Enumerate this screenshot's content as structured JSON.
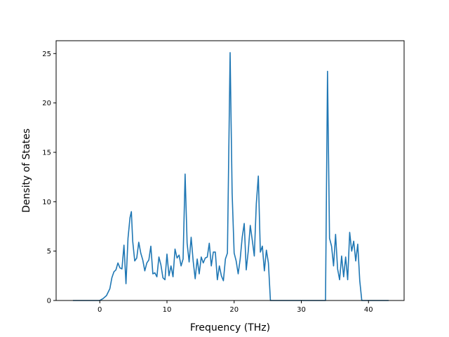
{
  "chart_data": {
    "type": "line",
    "title": "",
    "xlabel": "Frequency (THz)",
    "ylabel": "Density of States",
    "xlim": [
      -6.5,
      45.3
    ],
    "ylim": [
      0,
      26.3
    ],
    "xticks": [
      0,
      10,
      20,
      30,
      40
    ],
    "yticks": [
      0,
      5,
      10,
      15,
      20,
      25
    ],
    "grid": false,
    "legend": "none",
    "series": [
      {
        "color": "#1f77b4",
        "x": [
          -4.0,
          0.0,
          0.5,
          1.0,
          1.5,
          1.8,
          2.1,
          2.4,
          2.7,
          3.0,
          3.3,
          3.6,
          3.9,
          4.2,
          4.5,
          4.7,
          4.9,
          5.2,
          5.5,
          5.8,
          6.1,
          6.4,
          6.7,
          7.0,
          7.3,
          7.6,
          7.9,
          8.2,
          8.5,
          8.8,
          9.1,
          9.4,
          9.7,
          10.0,
          10.3,
          10.6,
          10.9,
          11.2,
          11.5,
          11.8,
          12.1,
          12.4,
          12.7,
          13.0,
          13.3,
          13.6,
          13.9,
          14.2,
          14.5,
          14.8,
          15.1,
          15.4,
          15.7,
          16.0,
          16.3,
          16.6,
          16.9,
          17.2,
          17.5,
          17.8,
          18.1,
          18.4,
          18.7,
          19.0,
          19.4,
          19.7,
          20.0,
          20.3,
          20.6,
          20.9,
          21.2,
          21.5,
          21.8,
          22.1,
          22.4,
          22.7,
          23.0,
          23.3,
          23.6,
          23.9,
          24.2,
          24.5,
          24.8,
          25.1,
          25.4,
          25.7,
          26.0,
          33.6,
          33.9,
          34.2,
          34.5,
          34.8,
          35.1,
          35.4,
          35.7,
          36.0,
          36.3,
          36.6,
          36.9,
          37.2,
          37.5,
          37.8,
          38.1,
          38.4,
          38.7,
          39.0,
          39.3,
          43.0
        ],
        "y": [
          0.0,
          0.0,
          0.2,
          0.5,
          1.2,
          2.3,
          2.9,
          3.1,
          3.8,
          3.3,
          3.2,
          5.6,
          1.7,
          6.3,
          8.4,
          9.0,
          6.0,
          4.0,
          4.3,
          5.9,
          4.8,
          4.1,
          3.0,
          3.8,
          4.1,
          5.5,
          2.7,
          2.8,
          2.4,
          4.4,
          3.6,
          2.3,
          2.1,
          4.7,
          2.5,
          3.5,
          2.4,
          5.2,
          4.3,
          4.6,
          3.5,
          4.2,
          12.8,
          5.8,
          3.9,
          6.4,
          4.0,
          2.2,
          4.2,
          2.7,
          4.4,
          3.8,
          4.3,
          4.4,
          5.8,
          3.5,
          4.9,
          4.9,
          2.1,
          3.5,
          2.5,
          2.0,
          4.2,
          4.8,
          25.1,
          10.9,
          4.8,
          4.0,
          2.7,
          4.2,
          6.4,
          7.8,
          3.1,
          5.0,
          7.6,
          6.1,
          4.5,
          9.8,
          12.6,
          4.9,
          5.5,
          3.0,
          5.1,
          3.8,
          0.0,
          0.0,
          0.0,
          0.0,
          23.2,
          6.3,
          5.5,
          3.5,
          6.7,
          3.2,
          2.1,
          4.5,
          2.4,
          4.4,
          2.1,
          6.9,
          5.0,
          6.0,
          4.0,
          5.7,
          2.0,
          0.0,
          0.0,
          0.0
        ]
      }
    ]
  }
}
